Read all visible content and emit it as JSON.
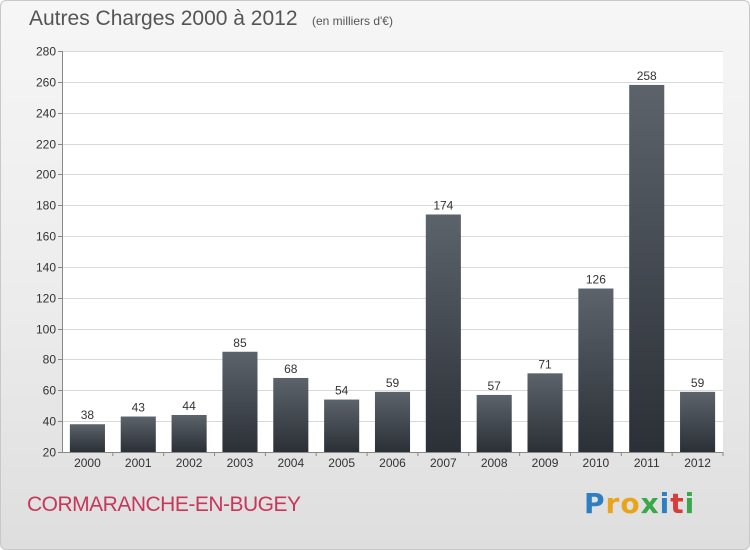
{
  "header": {
    "title": "Autres Charges 2000 à 2012",
    "unit": "(en milliers d'€)"
  },
  "footer": {
    "commune": "CORMARANCHE-EN-BUGEY",
    "brand": "Proxiti",
    "brand_colors": [
      "#2e7fc1",
      "#e8a51c",
      "#e8a51c",
      "#3aa84a",
      "#2e7fc1",
      "#d93a3a",
      "#3aa84a"
    ]
  },
  "chart_data": {
    "type": "bar",
    "categories": [
      "2000",
      "2001",
      "2002",
      "2003",
      "2004",
      "2005",
      "2006",
      "2007",
      "2008",
      "2009",
      "2010",
      "2011",
      "2012"
    ],
    "values": [
      38,
      43,
      44,
      85,
      68,
      54,
      59,
      174,
      57,
      71,
      126,
      258,
      59
    ],
    "ylim": [
      20,
      280
    ],
    "yticks": [
      20,
      40,
      60,
      80,
      100,
      120,
      140,
      160,
      180,
      200,
      220,
      240,
      260,
      280
    ],
    "grid": true,
    "bar_color_top": "#5d636b",
    "bar_color_bottom": "#2b3037"
  }
}
